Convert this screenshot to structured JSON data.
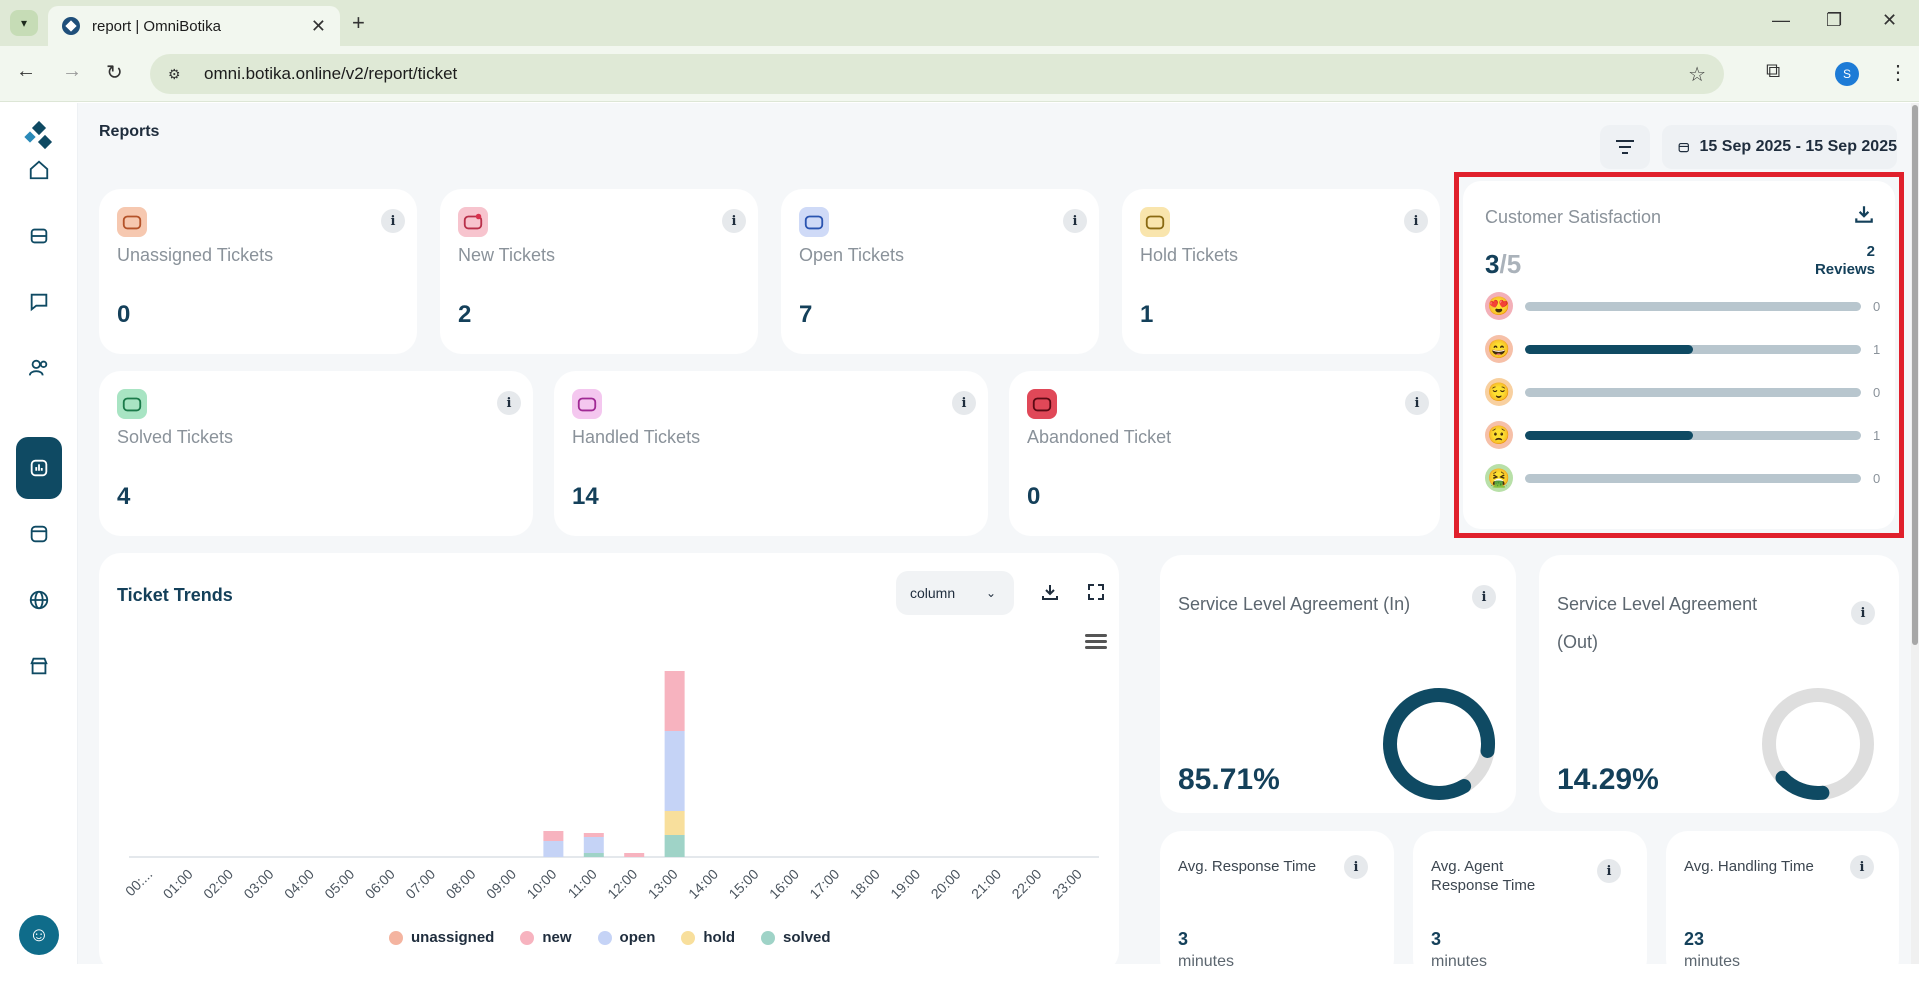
{
  "browser": {
    "tab_title": "report | OmniBotika",
    "url": "omni.botika.online/v2/report/ticket",
    "profile_initial": "S"
  },
  "page": {
    "title": "Reports",
    "date_range": "15 Sep 2025 - 15 Sep 2025"
  },
  "stats": [
    {
      "label": "Unassigned Tickets",
      "value": "0",
      "icon": "ticket-unassigned-icon",
      "color": "#f6c8b0"
    },
    {
      "label": "New Tickets",
      "value": "2",
      "icon": "ticket-new-icon",
      "color": "#f7c4ce"
    },
    {
      "label": "Open Tickets",
      "value": "7",
      "icon": "ticket-open-icon",
      "color": "#cfdaf7"
    },
    {
      "label": "Hold Tickets",
      "value": "1",
      "icon": "ticket-hold-icon",
      "color": "#f9e5ad"
    },
    {
      "label": "Solved Tickets",
      "value": "4",
      "icon": "ticket-solved-icon",
      "color": "#a8e4c3"
    },
    {
      "label": "Handled Tickets",
      "value": "14",
      "icon": "ticket-handled-icon",
      "color": "#f4c7ef"
    },
    {
      "label": "Abandoned Ticket",
      "value": "0",
      "icon": "ticket-abandoned-icon",
      "color": "#e04858"
    }
  ],
  "csat": {
    "title": "Customer Satisfaction",
    "score": "3",
    "max": "/5",
    "reviews_count": "2",
    "reviews_label": "Reviews",
    "rows": [
      {
        "emoji": "😍",
        "count": "0",
        "fraction": 0
      },
      {
        "emoji": "😄",
        "count": "1",
        "fraction": 0.5
      },
      {
        "emoji": "😌",
        "count": "0",
        "fraction": 0
      },
      {
        "emoji": "😟",
        "count": "1",
        "fraction": 0.5
      },
      {
        "emoji": "🤮",
        "count": "0",
        "fraction": 0
      }
    ]
  },
  "trends": {
    "title": "Ticket Trends",
    "chart_type_selected": "column"
  },
  "chart_data": {
    "type": "bar",
    "stacked": true,
    "categories": [
      "00:...",
      "01:00",
      "02:00",
      "03:00",
      "04:00",
      "05:00",
      "06:00",
      "07:00",
      "08:00",
      "09:00",
      "10:00",
      "11:00",
      "12:00",
      "13:00",
      "14:00",
      "15:00",
      "16:00",
      "17:00",
      "18:00",
      "19:00",
      "20:00",
      "21:00",
      "22:00",
      "23:00"
    ],
    "series": [
      {
        "name": "unassigned",
        "color": "#f4b4a0",
        "values": [
          0,
          0,
          0,
          0,
          0,
          0,
          0,
          0,
          0,
          0,
          0,
          0,
          0,
          0,
          0,
          0,
          0,
          0,
          0,
          0,
          0,
          0,
          0,
          0
        ]
      },
      {
        "name": "new",
        "color": "#f7b3bf",
        "values": [
          0,
          0,
          0,
          0,
          0,
          0,
          0,
          0,
          0,
          0,
          0.5,
          0.2,
          0.2,
          3,
          0,
          0,
          0,
          0,
          0,
          0,
          0,
          0,
          0,
          0
        ]
      },
      {
        "name": "open",
        "color": "#c5d3f6",
        "values": [
          0,
          0,
          0,
          0,
          0,
          0,
          0,
          0,
          0,
          0,
          0.8,
          0.8,
          0,
          4,
          0,
          0,
          0,
          0,
          0,
          0,
          0,
          0,
          0,
          0
        ]
      },
      {
        "name": "hold",
        "color": "#f8df9c",
        "values": [
          0,
          0,
          0,
          0,
          0,
          0,
          0,
          0,
          0,
          0,
          0,
          0,
          0,
          1.2,
          0,
          0,
          0,
          0,
          0,
          0,
          0,
          0,
          0,
          0
        ]
      },
      {
        "name": "solved",
        "color": "#9fd3c7",
        "values": [
          0,
          0,
          0,
          0,
          0,
          0,
          0,
          0,
          0,
          0,
          0,
          0.2,
          0,
          1.1,
          0,
          0,
          0,
          0,
          0,
          0,
          0,
          0,
          0,
          0
        ]
      }
    ],
    "ylim": [
      0,
      10
    ]
  },
  "sla_in": {
    "title": "Service Level Agreement (In)",
    "value": "85.71%",
    "fraction": 0.8571,
    "color": "#0f4a63"
  },
  "sla_out": {
    "title": "Service Level Agreement (Out)",
    "value": "14.29%",
    "fraction": 0.1429,
    "color": "#0f4a63"
  },
  "avg": [
    {
      "title": "Avg. Response Time",
      "value": "3",
      "unit": "minutes"
    },
    {
      "title": "Avg. Agent Response Time",
      "value": "3",
      "unit": "minutes"
    },
    {
      "title": "Avg. Handling Time",
      "value": "23",
      "unit": "minutes"
    }
  ]
}
